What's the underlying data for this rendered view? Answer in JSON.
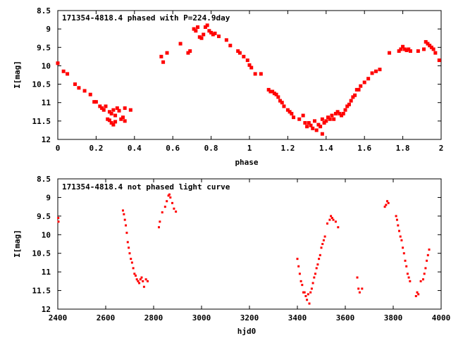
{
  "chart_data": [
    {
      "type": "scatter",
      "title": "171354-4818.4 phased with P=224.9day",
      "xlabel": "phase",
      "ylabel": "I[mag]",
      "xlim": [
        0,
        2
      ],
      "ylim": [
        8.5,
        12
      ],
      "y_inverted": true,
      "grid": false,
      "legend": "none",
      "marker_color": "#ff0000",
      "x_ticks": [
        "0",
        "0.2",
        "0.4",
        "0.6",
        "0.8",
        "1",
        "1.2",
        "1.4",
        "1.6",
        "1.8",
        "2"
      ],
      "y_ticks": [
        "8.5",
        "9",
        "9.5",
        "10",
        "10.5",
        "11",
        "11.5",
        "12"
      ],
      "series": [
        {
          "points": [
            [
              0.0,
              9.93
            ],
            [
              0.03,
              10.15
            ],
            [
              0.05,
              10.22
            ],
            [
              0.09,
              10.5
            ],
            [
              0.11,
              10.6
            ],
            [
              0.14,
              10.68
            ],
            [
              0.17,
              10.78
            ],
            [
              0.19,
              10.98
            ],
            [
              0.2,
              10.98
            ],
            [
              0.22,
              11.1
            ],
            [
              0.23,
              11.15
            ],
            [
              0.24,
              11.2
            ],
            [
              0.25,
              11.1
            ],
            [
              0.26,
              11.45
            ],
            [
              0.27,
              11.48
            ],
            [
              0.27,
              11.25
            ],
            [
              0.28,
              11.3
            ],
            [
              0.28,
              11.55
            ],
            [
              0.29,
              11.2
            ],
            [
              0.29,
              11.6
            ],
            [
              0.3,
              11.52
            ],
            [
              0.3,
              11.35
            ],
            [
              0.31,
              11.15
            ],
            [
              0.32,
              11.22
            ],
            [
              0.33,
              11.45
            ],
            [
              0.34,
              11.4
            ],
            [
              0.35,
              11.5
            ],
            [
              0.35,
              11.15
            ],
            [
              0.38,
              11.2
            ],
            [
              0.54,
              9.75
            ],
            [
              0.55,
              9.9
            ],
            [
              0.57,
              9.65
            ],
            [
              0.64,
              9.4
            ],
            [
              0.68,
              9.65
            ],
            [
              0.69,
              9.6
            ],
            [
              0.71,
              9.0
            ],
            [
              0.72,
              9.05
            ],
            [
              0.73,
              8.95
            ],
            [
              0.74,
              9.22
            ],
            [
              0.75,
              9.25
            ],
            [
              0.76,
              9.15
            ],
            [
              0.77,
              8.95
            ],
            [
              0.78,
              8.9
            ],
            [
              0.79,
              9.05
            ],
            [
              0.8,
              9.1
            ],
            [
              0.81,
              9.15
            ],
            [
              0.82,
              9.12
            ],
            [
              0.84,
              9.2
            ],
            [
              0.88,
              9.3
            ],
            [
              0.9,
              9.45
            ],
            [
              0.94,
              9.6
            ],
            [
              0.95,
              9.65
            ],
            [
              0.97,
              9.75
            ],
            [
              0.99,
              9.85
            ],
            [
              1.0,
              9.98
            ],
            [
              1.01,
              10.05
            ],
            [
              1.03,
              10.22
            ],
            [
              1.06,
              10.22
            ],
            [
              1.1,
              10.65
            ],
            [
              1.11,
              10.7
            ],
            [
              1.12,
              10.7
            ],
            [
              1.13,
              10.75
            ],
            [
              1.14,
              10.78
            ],
            [
              1.15,
              10.85
            ],
            [
              1.16,
              10.95
            ],
            [
              1.17,
              11.0
            ],
            [
              1.18,
              11.1
            ],
            [
              1.2,
              11.2
            ],
            [
              1.21,
              11.25
            ],
            [
              1.22,
              11.3
            ],
            [
              1.23,
              11.4
            ],
            [
              1.26,
              11.45
            ],
            [
              1.28,
              11.35
            ],
            [
              1.29,
              11.55
            ],
            [
              1.3,
              11.65
            ],
            [
              1.31,
              11.55
            ],
            [
              1.32,
              11.62
            ],
            [
              1.33,
              11.7
            ],
            [
              1.34,
              11.5
            ],
            [
              1.35,
              11.75
            ],
            [
              1.36,
              11.6
            ],
            [
              1.37,
              11.65
            ],
            [
              1.38,
              11.45
            ],
            [
              1.38,
              11.85
            ],
            [
              1.39,
              11.55
            ],
            [
              1.4,
              11.5
            ],
            [
              1.41,
              11.4
            ],
            [
              1.42,
              11.45
            ],
            [
              1.43,
              11.35
            ],
            [
              1.44,
              11.45
            ],
            [
              1.45,
              11.3
            ],
            [
              1.46,
              11.25
            ],
            [
              1.47,
              11.3
            ],
            [
              1.48,
              11.35
            ],
            [
              1.49,
              11.3
            ],
            [
              1.5,
              11.2
            ],
            [
              1.51,
              11.1
            ],
            [
              1.52,
              11.05
            ],
            [
              1.53,
              10.95
            ],
            [
              1.54,
              10.85
            ],
            [
              1.55,
              10.8
            ],
            [
              1.56,
              10.65
            ],
            [
              1.57,
              10.65
            ],
            [
              1.58,
              10.55
            ],
            [
              1.6,
              10.45
            ],
            [
              1.62,
              10.35
            ],
            [
              1.64,
              10.2
            ],
            [
              1.66,
              10.15
            ],
            [
              1.68,
              10.1
            ],
            [
              1.73,
              9.65
            ],
            [
              1.78,
              9.6
            ],
            [
              1.79,
              9.55
            ],
            [
              1.8,
              9.48
            ],
            [
              1.81,
              9.55
            ],
            [
              1.82,
              9.58
            ],
            [
              1.83,
              9.55
            ],
            [
              1.84,
              9.6
            ],
            [
              1.88,
              9.6
            ],
            [
              1.91,
              9.55
            ],
            [
              1.92,
              9.35
            ],
            [
              1.93,
              9.4
            ],
            [
              1.94,
              9.45
            ],
            [
              1.95,
              9.5
            ],
            [
              1.96,
              9.55
            ],
            [
              1.97,
              9.65
            ],
            [
              1.99,
              9.85
            ]
          ]
        }
      ]
    },
    {
      "type": "scatter",
      "title": "171354-4818.4 not phased light curve",
      "xlabel": "hjd0",
      "ylabel": "I[mag]",
      "xlim": [
        2400,
        4000
      ],
      "ylim": [
        8.5,
        12
      ],
      "y_inverted": true,
      "grid": false,
      "legend": "none",
      "marker_color": "#ff0000",
      "x_ticks": [
        "2400",
        "2600",
        "2800",
        "3000",
        "3200",
        "3400",
        "3600",
        "3800",
        "4000"
      ],
      "y_ticks": [
        "8.5",
        "9",
        "9.5",
        "10",
        "10.5",
        "11",
        "11.5",
        "12"
      ],
      "series": [
        {
          "points": [
            [
              2402,
              9.55
            ],
            [
              2403,
              9.65
            ],
            [
              2672,
              9.35
            ],
            [
              2676,
              9.45
            ],
            [
              2680,
              9.6
            ],
            [
              2684,
              9.75
            ],
            [
              2688,
              9.95
            ],
            [
              2692,
              10.2
            ],
            [
              2696,
              10.35
            ],
            [
              2700,
              10.5
            ],
            [
              2705,
              10.65
            ],
            [
              2710,
              10.75
            ],
            [
              2715,
              10.9
            ],
            [
              2720,
              11.05
            ],
            [
              2725,
              11.1
            ],
            [
              2730,
              11.2
            ],
            [
              2735,
              11.25
            ],
            [
              2740,
              11.3
            ],
            [
              2745,
              11.2
            ],
            [
              2750,
              11.15
            ],
            [
              2755,
              11.25
            ],
            [
              2760,
              11.4
            ],
            [
              2768,
              11.2
            ],
            [
              2775,
              11.25
            ],
            [
              2822,
              9.8
            ],
            [
              2826,
              9.65
            ],
            [
              2836,
              9.4
            ],
            [
              2848,
              9.25
            ],
            [
              2855,
              9.1
            ],
            [
              2862,
              8.95
            ],
            [
              2866,
              8.92
            ],
            [
              2870,
              9.0
            ],
            [
              2878,
              9.15
            ],
            [
              2885,
              9.3
            ],
            [
              2893,
              9.38
            ],
            [
              3400,
              10.65
            ],
            [
              3405,
              10.85
            ],
            [
              3410,
              11.05
            ],
            [
              3415,
              11.25
            ],
            [
              3420,
              11.35
            ],
            [
              3425,
              11.55
            ],
            [
              3430,
              11.55
            ],
            [
              3435,
              11.65
            ],
            [
              3440,
              11.75
            ],
            [
              3445,
              11.6
            ],
            [
              3450,
              11.85
            ],
            [
              3455,
              11.55
            ],
            [
              3460,
              11.45
            ],
            [
              3465,
              11.3
            ],
            [
              3470,
              11.15
            ],
            [
              3475,
              11.05
            ],
            [
              3480,
              10.9
            ],
            [
              3485,
              10.8
            ],
            [
              3490,
              10.65
            ],
            [
              3495,
              10.55
            ],
            [
              3500,
              10.35
            ],
            [
              3505,
              10.25
            ],
            [
              3510,
              10.15
            ],
            [
              3515,
              10.05
            ],
            [
              3525,
              9.7
            ],
            [
              3535,
              9.6
            ],
            [
              3540,
              9.5
            ],
            [
              3545,
              9.55
            ],
            [
              3550,
              9.6
            ],
            [
              3560,
              9.65
            ],
            [
              3570,
              9.8
            ],
            [
              3650,
              11.15
            ],
            [
              3655,
              11.45
            ],
            [
              3660,
              11.55
            ],
            [
              3670,
              11.45
            ],
            [
              3765,
              9.25
            ],
            [
              3770,
              9.2
            ],
            [
              3775,
              9.1
            ],
            [
              3780,
              9.15
            ],
            [
              3812,
              9.5
            ],
            [
              3816,
              9.6
            ],
            [
              3820,
              9.75
            ],
            [
              3825,
              9.9
            ],
            [
              3830,
              10.05
            ],
            [
              3835,
              10.15
            ],
            [
              3840,
              10.35
            ],
            [
              3845,
              10.5
            ],
            [
              3850,
              10.7
            ],
            [
              3855,
              10.85
            ],
            [
              3860,
              11.05
            ],
            [
              3865,
              11.15
            ],
            [
              3870,
              11.25
            ],
            [
              3895,
              11.65
            ],
            [
              3900,
              11.55
            ],
            [
              3905,
              11.6
            ],
            [
              3915,
              11.25
            ],
            [
              3925,
              11.2
            ],
            [
              3930,
              11.05
            ],
            [
              3935,
              10.9
            ],
            [
              3940,
              10.7
            ],
            [
              3945,
              10.55
            ],
            [
              3950,
              10.4
            ]
          ]
        }
      ]
    }
  ]
}
